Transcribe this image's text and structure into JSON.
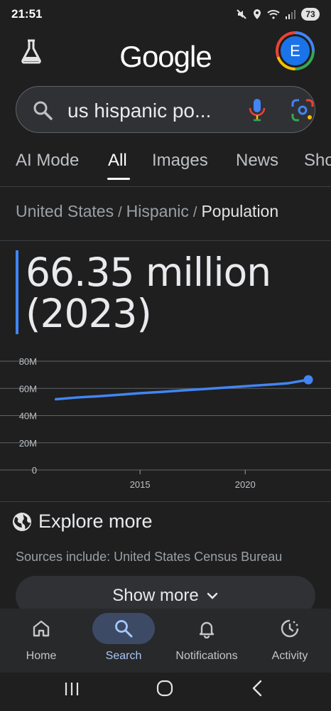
{
  "status_bar": {
    "time": "21:51",
    "battery": "73",
    "icons": [
      "mute-icon",
      "location-icon",
      "wifi-icon",
      "signal-icon",
      "battery-icon"
    ]
  },
  "header": {
    "logo_text": "Google",
    "avatar_letter": "E",
    "labs_icon": "flask-icon"
  },
  "search": {
    "query": "us hispanic po...",
    "icons": [
      "search-icon",
      "mic-icon",
      "lens-icon"
    ]
  },
  "tabs": [
    {
      "label": "AI Mode",
      "active": false
    },
    {
      "label": "All",
      "active": true
    },
    {
      "label": "Images",
      "active": false
    },
    {
      "label": "News",
      "active": false
    },
    {
      "label": "Sho",
      "active": false
    }
  ],
  "breadcrumb": {
    "items": [
      "United States",
      "Hispanic",
      "Population"
    ],
    "separator": "/"
  },
  "answer": {
    "value_line1": "66.35 million",
    "value_line2": "(2023)"
  },
  "chart_data": {
    "type": "line",
    "x": [
      2011,
      2012,
      2013,
      2014,
      2015,
      2016,
      2017,
      2018,
      2019,
      2020,
      2021,
      2022,
      2023
    ],
    "series": [
      {
        "values": [
          52.0,
          53.3,
          54.2,
          55.3,
          56.5,
          57.4,
          58.5,
          59.5,
          60.5,
          61.6,
          62.6,
          63.7,
          66.35
        ]
      }
    ],
    "y_ticks": [
      "80M",
      "60M",
      "40M",
      "20M",
      "0"
    ],
    "y_tick_values": [
      80,
      60,
      40,
      20,
      0
    ],
    "x_ticks": [
      "2015",
      "2020"
    ],
    "x_tick_values": [
      2015,
      2020
    ],
    "ylim": [
      0,
      80
    ],
    "xlim": [
      2010.3,
      2023.2
    ],
    "grid": true,
    "line_color": "#4285f4"
  },
  "explore": {
    "label": "Explore more",
    "sources": "Sources include: United States Census Bureau",
    "icon": "globe-icon"
  },
  "show_more": {
    "label": "Show more"
  },
  "bottom_nav": {
    "items": [
      {
        "label": "Home",
        "icon": "home-icon",
        "active": false
      },
      {
        "label": "Search",
        "icon": "search-icon",
        "active": true
      },
      {
        "label": "Notifications",
        "icon": "bell-icon",
        "active": false
      },
      {
        "label": "Activity",
        "icon": "activity-icon",
        "active": false
      }
    ]
  },
  "system_nav": [
    "recents-icon",
    "home-circle-icon",
    "back-icon"
  ]
}
